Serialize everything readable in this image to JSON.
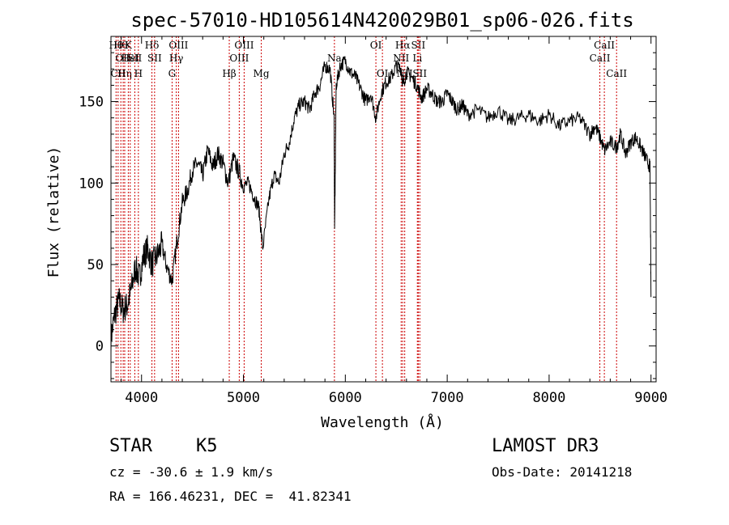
{
  "chart_data": {
    "type": "line",
    "title": "spec-57010-HD105614N420029B01_sp06-026.fits",
    "xlabel": "Wavelength (Å)",
    "ylabel": "Flux (relative)",
    "xlim": [
      3700,
      9050
    ],
    "ylim": [
      -22,
      190
    ],
    "xticks": [
      4000,
      5000,
      6000,
      7000,
      8000,
      9000
    ],
    "yticks": [
      0,
      50,
      100,
      150
    ],
    "grid": false,
    "line_color": "#000000",
    "marker_color": "#cc0000",
    "series": [
      {
        "x": [
          3700,
          3740,
          3780,
          3820,
          3860,
          3900,
          3940,
          3980,
          4020,
          4060,
          4100,
          4150,
          4200,
          4250,
          4300,
          4350,
          4400,
          4450,
          4500,
          4550,
          4600,
          4650,
          4700,
          4750,
          4800,
          4850,
          4900,
          4950,
          5000,
          5050,
          5100,
          5150,
          5190,
          5250,
          5300,
          5350,
          5400,
          5450,
          5500,
          5550,
          5600,
          5650,
          5700,
          5750,
          5800,
          5850,
          5890,
          5895,
          5910,
          5950,
          6000,
          6050,
          6100,
          6150,
          6200,
          6250,
          6300,
          6350,
          6400,
          6450,
          6500,
          6550,
          6563,
          6600,
          6650,
          6700,
          6750,
          6800,
          6850,
          6900,
          6950,
          7000,
          7050,
          7100,
          7150,
          7200,
          7300,
          7400,
          7500,
          7600,
          7700,
          7800,
          7900,
          8000,
          8100,
          8200,
          8300,
          8400,
          8450,
          8500,
          8542,
          8600,
          8662,
          8700,
          8750,
          8800,
          8850,
          8900,
          8950,
          8990,
          9000
        ],
        "values": [
          5,
          20,
          28,
          22,
          25,
          35,
          48,
          42,
          55,
          60,
          50,
          55,
          62,
          48,
          40,
          65,
          88,
          95,
          108,
          112,
          105,
          120,
          110,
          118,
          112,
          100,
          115,
          108,
          98,
          100,
          92,
          85,
          60,
          90,
          105,
          100,
          118,
          125,
          140,
          148,
          150,
          145,
          155,
          160,
          172,
          170,
          140,
          70,
          160,
          172,
          175,
          168,
          165,
          158,
          150,
          155,
          140,
          155,
          162,
          165,
          172,
          170,
          160,
          168,
          165,
          160,
          152,
          158,
          155,
          150,
          150,
          155,
          150,
          145,
          148,
          142,
          145,
          140,
          145,
          138,
          140,
          142,
          138,
          142,
          135,
          138,
          140,
          130,
          135,
          128,
          120,
          125,
          122,
          130,
          118,
          125,
          128,
          122,
          115,
          110,
          30
        ]
      }
    ],
    "line_markers": [
      {
        "x": 3750,
        "label": "Hθ",
        "row": 1
      },
      {
        "x": 3770,
        "label": "CII",
        "row": 3
      },
      {
        "x": 3797,
        "label": "Hθ",
        "row": 1
      },
      {
        "x": 3820,
        "label": "OII",
        "row": 2
      },
      {
        "x": 3835,
        "label": "Hη",
        "row": 3
      },
      {
        "x": 3870,
        "label": "K",
        "row": 1
      },
      {
        "x": 3889,
        "label": "HeI",
        "row": 2
      },
      {
        "x": 3934,
        "label": "SII",
        "row": 2
      },
      {
        "x": 3969,
        "label": "H",
        "row": 3
      },
      {
        "x": 4102,
        "label": "Hδ",
        "row": 1
      },
      {
        "x": 4128,
        "label": "SII",
        "row": 2
      },
      {
        "x": 4300,
        "label": "G",
        "row": 3
      },
      {
        "x": 4341,
        "label": "Hγ",
        "row": 2
      },
      {
        "x": 4363,
        "label": "OIII",
        "row": 1
      },
      {
        "x": 4861,
        "label": "Hβ",
        "row": 3
      },
      {
        "x": 4959,
        "label": "OIII",
        "row": 2
      },
      {
        "x": 5007,
        "label": "OIII",
        "row": 1
      },
      {
        "x": 5175,
        "label": "Mg",
        "row": 3
      },
      {
        "x": 5893,
        "label": "Na",
        "row": 2
      },
      {
        "x": 6300,
        "label": "OI",
        "row": 1
      },
      {
        "x": 6364,
        "label": "OI",
        "row": 3
      },
      {
        "x": 6548,
        "label": "NII",
        "row": 2
      },
      {
        "x": 6563,
        "label": "Hα",
        "row": 1
      },
      {
        "x": 6583,
        "label": "NII",
        "row": 3
      },
      {
        "x": 6707,
        "label": "Li",
        "row": 2
      },
      {
        "x": 6716,
        "label": "SII",
        "row": 1
      },
      {
        "x": 6731,
        "label": "SII",
        "row": 3
      },
      {
        "x": 8498,
        "label": "CaII",
        "row": 2
      },
      {
        "x": 8542,
        "label": "CaII",
        "row": 1
      },
      {
        "x": 8662,
        "label": "CaII",
        "row": 3
      }
    ]
  },
  "info": {
    "object_class": "STAR",
    "subclass": "K5",
    "survey": "LAMOST DR3",
    "redshift": "cz = -30.6 ± 1.9 km/s",
    "obs_date": "Obs-Date: 20141218",
    "coords": "RA = 166.46231, DEC =  41.82341"
  }
}
